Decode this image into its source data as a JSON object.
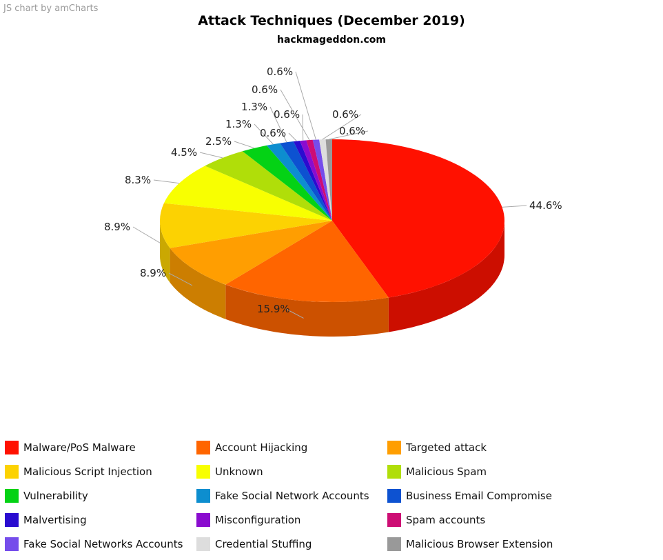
{
  "credit": "JS chart by amCharts",
  "chart_data": {
    "type": "pie",
    "title": "Attack Techniques (December 2019)",
    "subtitle": "hackmageddon.com",
    "legend_position": "bottom",
    "slices": [
      {
        "label": "Malware/PoS Malware",
        "value": 44.6,
        "color": "#ff1100"
      },
      {
        "label": "Account Hijacking",
        "value": 15.9,
        "color": "#ff6500"
      },
      {
        "label": "Targeted attack",
        "value": 8.9,
        "color": "#ff9e01"
      },
      {
        "label": "Malicious Script Injection",
        "value": 8.9,
        "color": "#fcd202"
      },
      {
        "label": "Unknown",
        "value": 8.3,
        "color": "#f8ff01"
      },
      {
        "label": "Malicious Spam",
        "value": 4.5,
        "color": "#b0de09"
      },
      {
        "label": "Vulnerability",
        "value": 2.5,
        "color": "#04d215"
      },
      {
        "label": "Fake Social Network Accounts",
        "value": 1.3,
        "color": "#0d8ecf"
      },
      {
        "label": "Business Email Compromise",
        "value": 1.3,
        "color": "#0d52d1"
      },
      {
        "label": "Malvertising",
        "value": 0.6,
        "color": "#2a0cd0"
      },
      {
        "label": "Misconfiguration",
        "value": 0.6,
        "color": "#8a0ccf"
      },
      {
        "label": "Spam accounts",
        "value": 0.6,
        "color": "#cd0d74"
      },
      {
        "label": "Fake Social Networks Accounts",
        "value": 0.6,
        "color": "#754deb"
      },
      {
        "label": "Credential Stuffing",
        "value": 0.6,
        "color": "#dddddd"
      },
      {
        "label": "Malicious Browser Extension",
        "value": 0.6,
        "color": "#999999"
      }
    ]
  }
}
